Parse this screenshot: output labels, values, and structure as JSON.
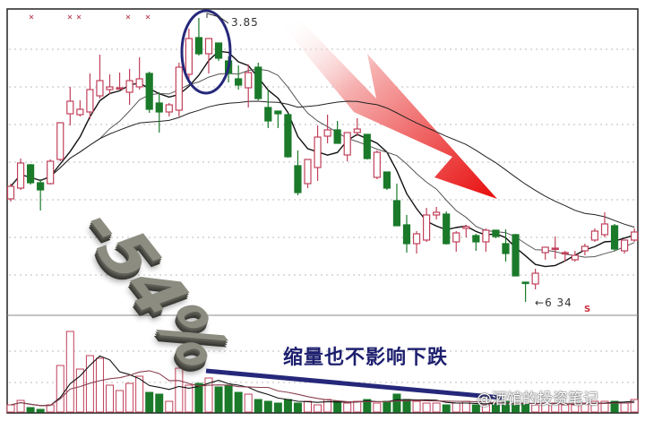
{
  "annotations": {
    "title": "缩量也不影响下跌",
    "peak_label": "3.85",
    "low_label": "6 34",
    "low_arrow": "←",
    "drop_label": "-54%",
    "signal_mark": "S",
    "watermark": "@酒馆的投资笔记"
  },
  "colors": {
    "up": "#c0405a",
    "down": "#1a7a2a",
    "ma_short": "#111111",
    "ma_mid": "#555555",
    "ma_long": "#222222",
    "arrow": "#e81818",
    "trend_line": "#25287a",
    "circle": "#25287a"
  },
  "chart_data": {
    "type": "candlestick",
    "title": "",
    "grid": true,
    "ylim": [
      0.6,
      4.0
    ],
    "ohlc": [
      [
        1.83,
        2.0,
        1.8,
        1.97
      ],
      [
        1.95,
        2.28,
        1.93,
        2.23
      ],
      [
        2.21,
        2.22,
        1.99,
        2.01
      ],
      [
        2.01,
        2.05,
        1.7,
        1.93
      ],
      [
        2.0,
        2.27,
        1.99,
        2.25
      ],
      [
        2.27,
        2.68,
        2.25,
        2.68
      ],
      [
        2.78,
        3.08,
        2.65,
        2.92
      ],
      [
        2.77,
        2.93,
        2.75,
        2.83
      ],
      [
        2.8,
        3.23,
        2.72,
        3.05
      ],
      [
        2.98,
        3.44,
        2.95,
        3.15
      ],
      [
        3.05,
        3.22,
        3.0,
        3.08
      ],
      [
        3.07,
        3.24,
        3.05,
        3.07
      ],
      [
        3.02,
        3.28,
        2.88,
        3.15
      ],
      [
        3.08,
        3.41,
        3.05,
        3.17
      ],
      [
        3.23,
        3.25,
        2.79,
        2.83
      ],
      [
        2.9,
        3.02,
        2.57,
        2.8
      ],
      [
        2.8,
        2.9,
        2.75,
        2.88
      ],
      [
        2.82,
        3.35,
        2.75,
        3.3
      ],
      [
        3.22,
        3.73,
        3.15,
        3.62
      ],
      [
        3.63,
        3.85,
        3.43,
        3.45
      ],
      [
        3.45,
        3.62,
        3.23,
        3.62
      ],
      [
        3.57,
        3.57,
        3.37,
        3.4
      ],
      [
        3.37,
        3.42,
        3.13,
        3.23
      ],
      [
        3.17,
        3.32,
        3.05,
        3.1
      ],
      [
        3.07,
        3.33,
        2.85,
        3.24
      ],
      [
        3.3,
        3.35,
        2.93,
        2.95
      ],
      [
        2.85,
        3.05,
        2.62,
        2.7
      ],
      [
        2.81,
        2.81,
        2.62,
        2.78
      ],
      [
        2.77,
        2.78,
        2.29,
        2.3
      ],
      [
        2.2,
        2.37,
        1.87,
        1.9
      ],
      [
        2.0,
        2.27,
        1.95,
        2.27
      ],
      [
        2.18,
        2.65,
        2.03,
        2.52
      ],
      [
        2.53,
        2.77,
        2.45,
        2.6
      ],
      [
        2.6,
        2.7,
        2.45,
        2.45
      ],
      [
        2.32,
        2.57,
        2.25,
        2.57
      ],
      [
        2.57,
        2.73,
        2.53,
        2.61
      ],
      [
        2.55,
        2.55,
        2.27,
        2.28
      ],
      [
        2.07,
        2.37,
        2.05,
        2.35
      ],
      [
        2.13,
        2.13,
        1.93,
        1.95
      ],
      [
        1.81,
        2.0,
        1.53,
        1.53
      ],
      [
        1.54,
        1.65,
        1.23,
        1.33
      ],
      [
        1.33,
        1.47,
        1.22,
        1.44
      ],
      [
        1.37,
        1.73,
        1.35,
        1.65
      ],
      [
        1.65,
        1.74,
        1.6,
        1.68
      ],
      [
        1.66,
        1.69,
        1.32,
        1.33
      ],
      [
        1.35,
        1.47,
        1.24,
        1.45
      ],
      [
        1.5,
        1.54,
        1.4,
        1.52
      ],
      [
        1.42,
        1.44,
        1.25,
        1.35
      ],
      [
        1.35,
        1.5,
        1.24,
        1.48
      ],
      [
        1.48,
        1.48,
        1.39,
        1.41
      ],
      [
        1.33,
        1.49,
        1.13,
        1.22
      ],
      [
        1.43,
        1.44,
        0.97,
        0.97
      ],
      [
        0.9,
        0.9,
        0.68,
        0.89
      ],
      [
        0.88,
        1.05,
        0.82,
        1.0
      ],
      [
        1.23,
        1.29,
        1.15,
        1.29
      ],
      [
        1.28,
        1.41,
        1.16,
        1.28
      ],
      [
        1.23,
        1.25,
        1.13,
        1.23
      ],
      [
        1.15,
        1.25,
        1.13,
        1.2
      ],
      [
        1.25,
        1.33,
        1.2,
        1.3
      ],
      [
        1.37,
        1.5,
        1.35,
        1.47
      ],
      [
        1.43,
        1.68,
        1.4,
        1.55
      ],
      [
        1.53,
        1.55,
        1.25,
        1.27
      ],
      [
        1.25,
        1.37,
        1.22,
        1.37
      ],
      [
        1.37,
        1.5,
        1.35,
        1.46
      ]
    ],
    "volume": [
      8,
      13,
      5,
      3,
      8,
      52,
      90,
      48,
      63,
      60,
      30,
      24,
      32,
      40,
      22,
      20,
      12,
      49,
      30,
      32,
      38,
      28,
      30,
      22,
      20,
      14,
      12,
      10,
      14,
      10,
      12,
      8,
      14,
      12,
      10,
      12,
      14,
      10,
      12,
      20,
      14,
      12,
      10,
      10,
      8,
      10,
      12,
      8,
      8,
      10,
      12,
      8,
      10,
      8,
      10,
      10,
      8,
      8,
      10,
      12,
      12,
      12,
      10,
      14
    ],
    "moving_averages": [
      5,
      10,
      30
    ]
  }
}
